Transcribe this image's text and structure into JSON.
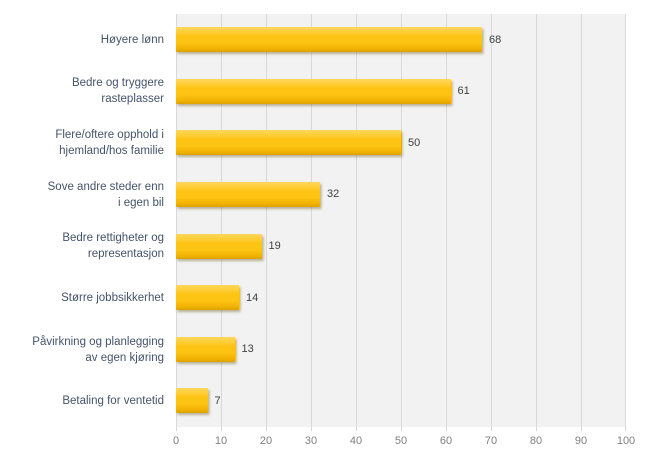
{
  "chart_data": {
    "type": "bar",
    "orientation": "horizontal",
    "title": "",
    "xlabel": "",
    "ylabel": "",
    "categories": [
      "Høyere lønn",
      "Bedre og tryggere rasteplasser",
      "Flere/oftere opphold i hjemland/hos familie",
      "Sove andre steder enn i egen bil",
      "Bedre rettigheter og representasjon",
      "Større jobbsikkerhet",
      "Påvirkning og planlegging av egen kjøring",
      "Betaling for ventetid"
    ],
    "category_lines": [
      [
        "Høyere lønn"
      ],
      [
        "Bedre og tryggere",
        "rasteplasser"
      ],
      [
        "Flere/oftere opphold i",
        "hjemland/hos familie"
      ],
      [
        "Sove andre steder enn",
        "i egen bil"
      ],
      [
        "Bedre rettigheter og",
        "representasjon"
      ],
      [
        "Større jobbsikkerhet"
      ],
      [
        "Påvirkning og planlegging",
        "av egen kjøring"
      ],
      [
        "Betaling for ventetid"
      ]
    ],
    "values": [
      68,
      61,
      50,
      32,
      19,
      14,
      13,
      7
    ],
    "data_labels": [
      "68",
      "61",
      "50",
      "32",
      "19",
      "14",
      "13",
      "7"
    ],
    "xlim": [
      0,
      100
    ],
    "x_ticks": [
      0,
      10,
      20,
      30,
      40,
      50,
      60,
      70,
      80,
      90,
      100
    ],
    "grid": true,
    "legend": false,
    "colors": {
      "background": "#FFFFFF",
      "plot_bg": "#F2F2F2",
      "gridline": "#D9D9D9",
      "bar_top": "#FFD75E",
      "bar_mid": "#FEC414",
      "bar_low": "#EFAF00",
      "bar_bottom": "#D9A000",
      "bar_shadow": "rgba(110,95,35,0.45)",
      "category_label": "#44546A",
      "value_label": "#404040",
      "tick_label": "#7F7F7F"
    }
  }
}
